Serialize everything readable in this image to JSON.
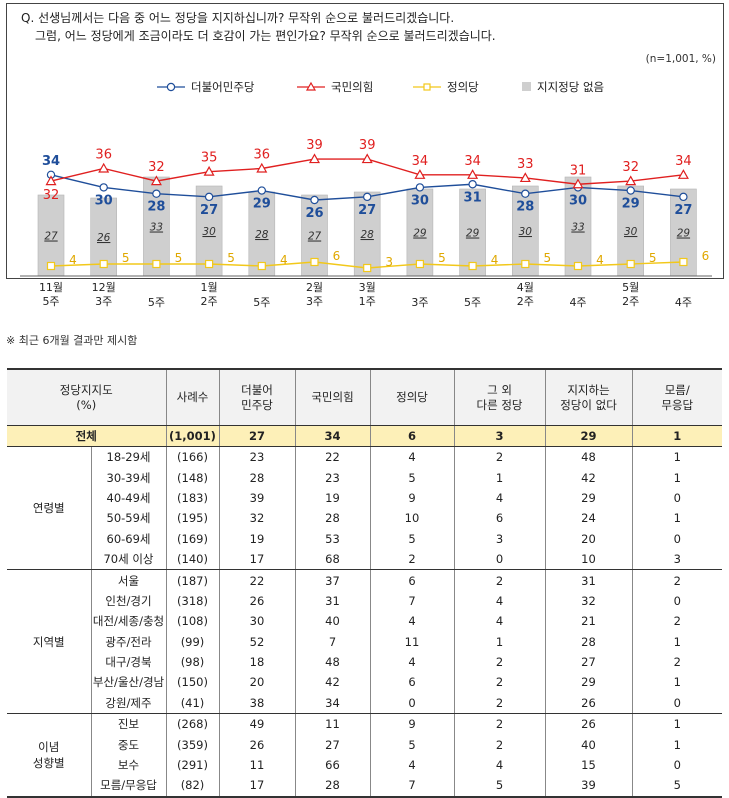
{
  "question": {
    "line1": "Q. 선생님께서는 다음 중 어느 정당을 지지하십니까? 무작위 순으로 불러드리겠습니다.",
    "line2": "그럼, 어느 정당에게 조금이라도 더 호감이 가는 편인가요? 무작위 순으로 불러드리겠습니다."
  },
  "sample_note": "(n=1,001,  %)",
  "footnote": "※ 최근 6개월 결과만 제시함",
  "colors": {
    "democratic": "#1f4e9a",
    "ppp": "#e02020",
    "justice": "#f2c81a",
    "none": "#cfcfcf"
  },
  "chart_data": {
    "type": "line",
    "categories": [
      [
        "11월",
        "5주"
      ],
      [
        "12월",
        "3주"
      ],
      [
        "5주"
      ],
      [
        "1월",
        "2주"
      ],
      [
        "5주"
      ],
      [
        "2월",
        "3주"
      ],
      [
        "3월",
        "1주"
      ],
      [
        "3주"
      ],
      [
        "5주"
      ],
      [
        "4월",
        "2주"
      ],
      [
        "4주"
      ],
      [
        "5월",
        "2주"
      ],
      [
        "4주"
      ]
    ],
    "series": [
      {
        "name": "더불어민주당",
        "type": "line",
        "values": [
          34,
          30,
          28,
          27,
          29,
          26,
          27,
          30,
          31,
          28,
          30,
          29,
          27
        ]
      },
      {
        "name": "국민의힘",
        "type": "line",
        "values": [
          32,
          36,
          32,
          35,
          36,
          39,
          39,
          34,
          34,
          33,
          31,
          32,
          34
        ]
      },
      {
        "name": "정의당",
        "type": "line",
        "values": [
          4,
          5,
          5,
          5,
          4,
          6,
          3,
          5,
          4,
          5,
          4,
          5,
          6
        ]
      },
      {
        "name": "지지정당 없음",
        "type": "bar",
        "values": [
          27,
          26,
          33,
          30,
          28,
          27,
          28,
          29,
          29,
          30,
          33,
          30,
          29
        ]
      }
    ],
    "legend_position": "top"
  },
  "table": {
    "headers": [
      [
        "정당지지도",
        "(%)"
      ],
      [
        "사례수"
      ],
      [
        "더불어",
        "민주당"
      ],
      [
        "국민의힘"
      ],
      [
        "정의당"
      ],
      [
        "그 외",
        "다른 정당"
      ],
      [
        "지지하는",
        "정당이 없다"
      ],
      [
        "모름/",
        "무응답"
      ]
    ],
    "total": {
      "label": "전체",
      "n": "(1,001)",
      "values": [
        "27",
        "34",
        "6",
        "3",
        "29",
        "1"
      ]
    },
    "groups": [
      {
        "name": [
          "연령별"
        ],
        "rows": [
          {
            "label": "18-29세",
            "n": "(166)",
            "values": [
              "23",
              "22",
              "4",
              "2",
              "48",
              "1"
            ]
          },
          {
            "label": "30-39세",
            "n": "(148)",
            "values": [
              "28",
              "23",
              "5",
              "1",
              "42",
              "1"
            ]
          },
          {
            "label": "40-49세",
            "n": "(183)",
            "values": [
              "39",
              "19",
              "9",
              "4",
              "29",
              "0"
            ]
          },
          {
            "label": "50-59세",
            "n": "(195)",
            "values": [
              "32",
              "28",
              "10",
              "6",
              "24",
              "1"
            ]
          },
          {
            "label": "60-69세",
            "n": "(169)",
            "values": [
              "19",
              "53",
              "5",
              "3",
              "20",
              "0"
            ]
          },
          {
            "label": "70세 이상",
            "n": "(140)",
            "values": [
              "17",
              "68",
              "2",
              "0",
              "10",
              "3"
            ]
          }
        ]
      },
      {
        "name": [
          "지역별"
        ],
        "rows": [
          {
            "label": "서울",
            "n": "(187)",
            "values": [
              "22",
              "37",
              "6",
              "2",
              "31",
              "2"
            ]
          },
          {
            "label": "인천/경기",
            "n": "(318)",
            "values": [
              "26",
              "31",
              "7",
              "4",
              "32",
              "0"
            ]
          },
          {
            "label": "대전/세종/충청",
            "n": "(108)",
            "values": [
              "30",
              "40",
              "4",
              "4",
              "21",
              "2"
            ]
          },
          {
            "label": "광주/전라",
            "n": "(99)",
            "values": [
              "52",
              "7",
              "11",
              "1",
              "28",
              "1"
            ]
          },
          {
            "label": "대구/경북",
            "n": "(98)",
            "values": [
              "18",
              "48",
              "4",
              "2",
              "27",
              "2"
            ]
          },
          {
            "label": "부산/울산/경남",
            "n": "(150)",
            "values": [
              "20",
              "42",
              "6",
              "2",
              "29",
              "1"
            ]
          },
          {
            "label": "강원/제주",
            "n": "(41)",
            "values": [
              "38",
              "34",
              "0",
              "2",
              "26",
              "0"
            ]
          }
        ]
      },
      {
        "name": [
          "이념",
          "성향별"
        ],
        "rows": [
          {
            "label": "진보",
            "n": "(268)",
            "values": [
              "49",
              "11",
              "9",
              "2",
              "26",
              "1"
            ]
          },
          {
            "label": "중도",
            "n": "(359)",
            "values": [
              "26",
              "27",
              "5",
              "2",
              "40",
              "1"
            ]
          },
          {
            "label": "보수",
            "n": "(291)",
            "values": [
              "11",
              "66",
              "4",
              "4",
              "15",
              "0"
            ]
          },
          {
            "label": "모름/무응답",
            "n": "(82)",
            "values": [
              "17",
              "28",
              "7",
              "5",
              "39",
              "5"
            ]
          }
        ]
      }
    ]
  }
}
